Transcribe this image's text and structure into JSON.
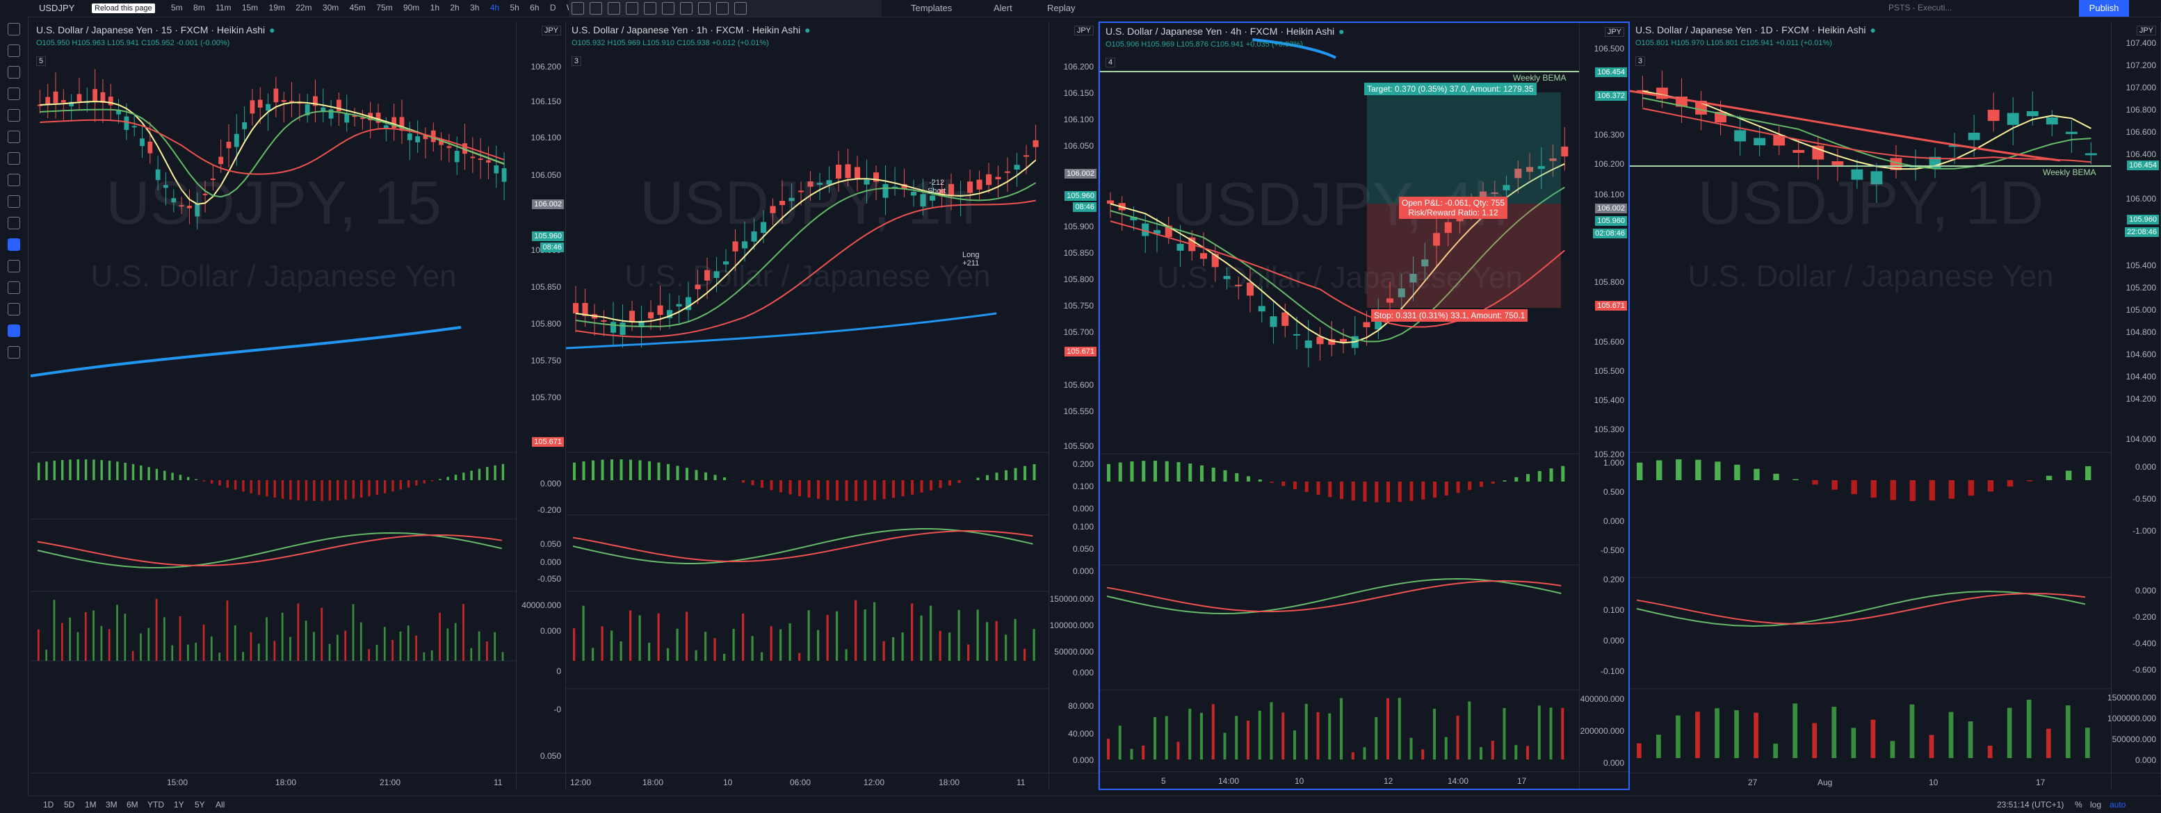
{
  "topbar": {
    "symbol": "USDJPY",
    "tooltip": "Reload this page",
    "intervals": [
      "5m",
      "8m",
      "11m",
      "15m",
      "19m",
      "22m",
      "30m",
      "45m",
      "75m",
      "90m",
      "1h",
      "2h",
      "3h",
      "4h",
      "5h",
      "6h",
      "D",
      "W"
    ],
    "active_interval": "4h",
    "templates_label": "Templates",
    "alert_label": "Alert",
    "replay_label": "Replay",
    "account_label": "PSTS - Executi...",
    "publish_label": "Publish"
  },
  "panes": [
    {
      "title": "U.S. Dollar / Japanese Yen · 15 · FXCM · Heikin Ashi",
      "ohlc": "O105.950 H105.963 L105.941 C105.952 -0.001 (-0.00%)",
      "count": "5",
      "currency": "JPY",
      "watermark": "USDJPY, 15",
      "subwatermark": "U.S. Dollar / Japanese Yen",
      "price_labels": [
        "106.200",
        "106.150",
        "106.100",
        "106.050",
        "106.002",
        "105.960",
        "105.950",
        "105.900",
        "105.850",
        "105.800",
        "105.750",
        "105.700"
      ],
      "tags": [
        {
          "text": "106.002",
          "color": "grey"
        },
        {
          "text": "105.960",
          "color": "green"
        },
        {
          "text": "08:46",
          "color": "green"
        },
        {
          "text": "105.671",
          "color": "red"
        }
      ],
      "ind1_labels": [
        "0.000",
        "-0.200"
      ],
      "ind2_labels": [
        "0.050",
        "0.000",
        "-0.050"
      ],
      "ind3_labels": [
        "40000.000",
        "0.000"
      ],
      "ind4_labels": [
        "0",
        "-0"
      ],
      "ind5_labels": [
        "0.050"
      ],
      "time_labels": [
        "15:00",
        "18:00",
        "21:00",
        "11"
      ]
    },
    {
      "title": "U.S. Dollar / Japanese Yen · 1h · FXCM · Heikin Ashi",
      "ohlc": "O105.932 H105.969 L105.910 C105.938 +0.012 (+0.01%)",
      "count": "3",
      "currency": "JPY",
      "watermark": "USDJPY, 1h",
      "subwatermark": "U.S. Dollar / Japanese Yen",
      "price_labels": [
        "106.200",
        "106.150",
        "106.100",
        "106.050",
        "106.000",
        "105.950",
        "105.900",
        "105.850",
        "105.800",
        "105.750",
        "105.700",
        "105.650",
        "105.600",
        "105.550",
        "105.500"
      ],
      "tags": [
        {
          "text": "106.002",
          "color": "grey"
        },
        {
          "text": "105.960",
          "color": "green"
        },
        {
          "text": "08:46",
          "color": "green"
        },
        {
          "text": "105.671",
          "color": "red"
        }
      ],
      "ind1_labels": [
        "0.200",
        "0.100",
        "0.000"
      ],
      "ind2_labels": [
        "0.100",
        "0.050",
        "0.000"
      ],
      "ind3_labels": [
        "150000.000",
        "100000.000",
        "50000.000",
        "0.000"
      ],
      "ind4_labels": [
        "80.000",
        "40.000",
        "0.000"
      ],
      "trade_short": {
        "value": "-212",
        "label": "Short"
      },
      "trade_long": {
        "label": "Long",
        "value": "+211"
      },
      "time_labels": [
        "12:00",
        "18:00",
        "10",
        "06:00",
        "12:00",
        "18:00",
        "11"
      ]
    },
    {
      "title": "U.S. Dollar / Japanese Yen · 4h · FXCM · Heikin Ashi",
      "ohlc": "O105.906 H105.969 L105.876 C105.941 +0.035 (+0.03%)",
      "count": "4",
      "currency": "JPY",
      "watermark": "USDJPY, 4h",
      "subwatermark": "U.S. Dollar / Japanese Yen",
      "price_labels": [
        "106.500",
        "106.400",
        "106.300",
        "106.200",
        "106.100",
        "106.000",
        "105.900",
        "105.800",
        "105.700",
        "105.600",
        "105.500",
        "105.400",
        "105.300",
        "105.200"
      ],
      "tags": [
        {
          "text": "106.454",
          "color": "green"
        },
        {
          "text": "106.372",
          "color": "green"
        },
        {
          "text": "106.002",
          "color": "grey"
        },
        {
          "text": "105.960",
          "color": "green"
        },
        {
          "text": "02:08:46",
          "color": "green"
        },
        {
          "text": "105.671",
          "color": "red"
        }
      ],
      "bema_label": "Weekly BEMA",
      "target_label": "Target: 0.370 (0.35%) 37.0, Amount: 1279.35",
      "open_pnl_label": "Open P&L: -0.061, Qty: 755",
      "rr_label": "Risk/Reward Ratio: 1.12",
      "stop_label": "Stop: 0.331 (0.31%) 33.1, Amount: 750.1",
      "ind1_labels": [
        "1.000",
        "0.500",
        "0.000",
        "-0.500"
      ],
      "ind2_labels": [
        "0.200",
        "0.100",
        "0.000",
        "-0.100"
      ],
      "ind3_labels": [
        "400000.000",
        "200000.000",
        "0.000"
      ],
      "time_labels": [
        "5",
        "14:00",
        "10",
        "12",
        "14:00",
        "17"
      ]
    },
    {
      "title": "U.S. Dollar / Japanese Yen · 1D · FXCM · Heikin Ashi",
      "ohlc": "O105.801 H105.970 L105.801 C105.941 +0.011 (+0.01%)",
      "count": "3",
      "currency": "JPY",
      "watermark": "USDJPY, 1D",
      "subwatermark": "U.S. Dollar / Japanese Yen",
      "price_labels": [
        "107.400",
        "107.200",
        "107.000",
        "106.800",
        "106.600",
        "106.400",
        "106.200",
        "106.000",
        "105.800",
        "105.600",
        "105.400",
        "105.200",
        "105.000",
        "104.800",
        "104.600",
        "104.400",
        "104.200",
        "104.000"
      ],
      "tags": [
        {
          "text": "106.454",
          "color": "green"
        },
        {
          "text": "105.960",
          "color": "green"
        },
        {
          "text": "22:08:46",
          "color": "green"
        }
      ],
      "bema_label": "Weekly BEMA",
      "ind1_labels": [
        "0.000",
        "-0.500",
        "-1.000"
      ],
      "ind2_labels": [
        "0.000",
        "-0.200",
        "-0.400",
        "-0.600"
      ],
      "ind3_labels": [
        "1500000.000",
        "1000000.000",
        "500000.000",
        "0.000"
      ],
      "time_labels": [
        "27",
        "Aug",
        "10",
        "17"
      ]
    }
  ],
  "bottombar": {
    "ranges": [
      "1D",
      "5D",
      "1M",
      "3M",
      "6M",
      "YTD",
      "1Y",
      "5Y",
      "All"
    ],
    "clock": "23:51:14 (UTC+1)",
    "percent": "%",
    "log": "log",
    "auto": "auto"
  },
  "colors": {
    "up": "#26a69a",
    "down": "#ef5350",
    "accent": "#2962ff",
    "bg": "#131722"
  }
}
